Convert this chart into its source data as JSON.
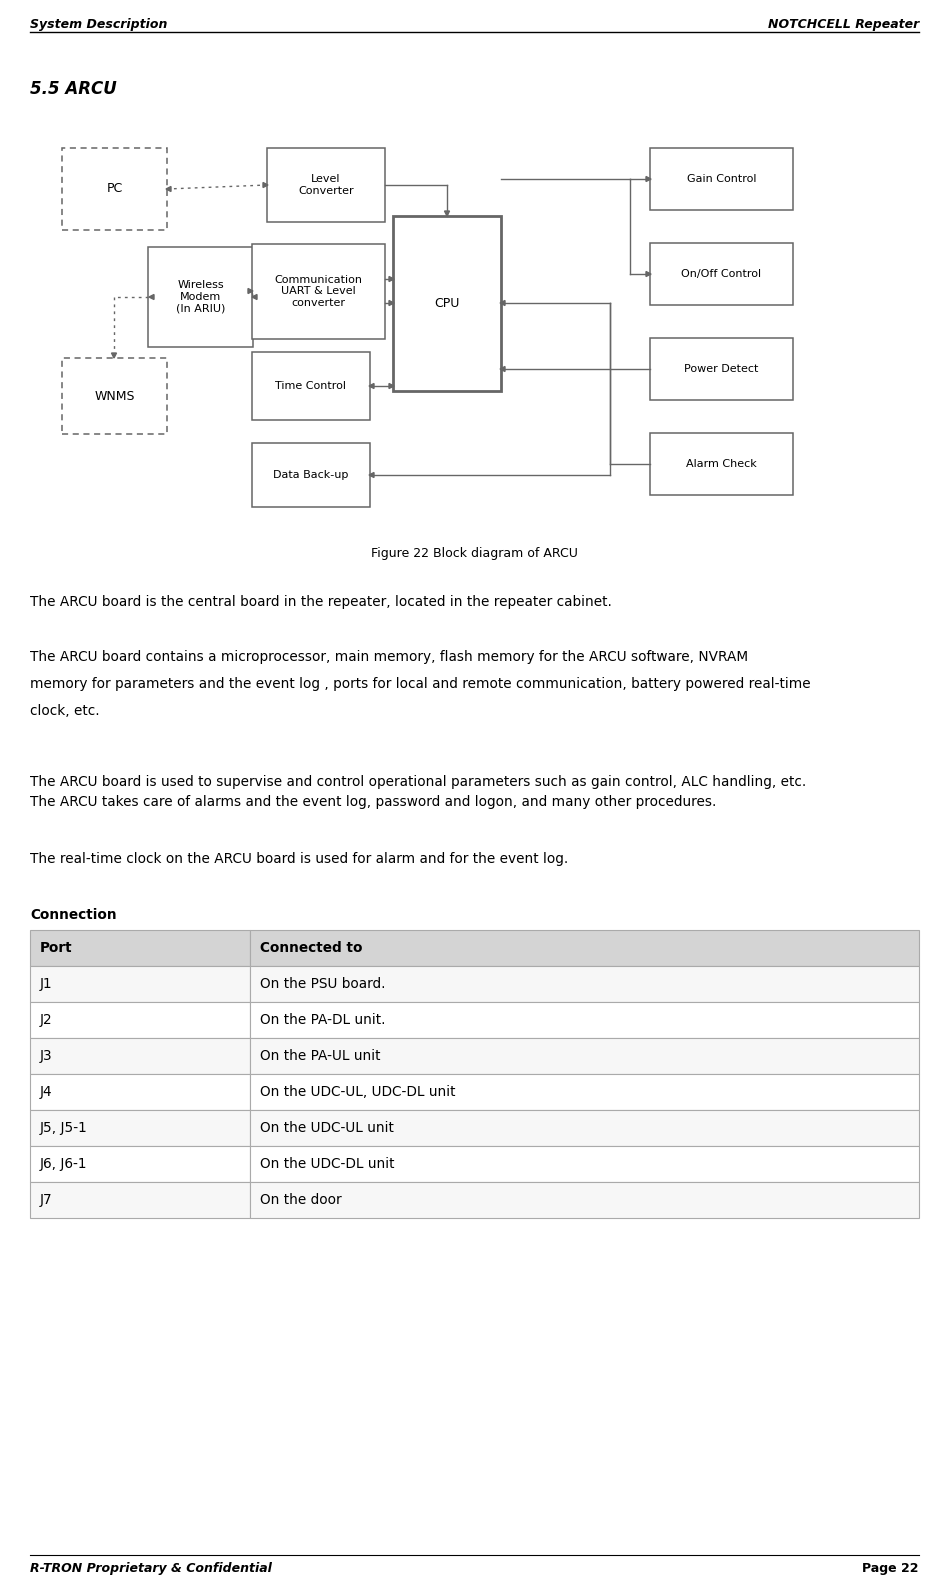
{
  "header_left": "System Description",
  "header_right": "NOTCHCELL Repeater",
  "footer_left": "R-TRON Proprietary & Confidential",
  "footer_right": "Page 22",
  "section_title": "5.5 ARCU",
  "figure_caption": "Figure 22 Block diagram of ARCU",
  "para1": "The ARCU board is the central board in the repeater, located in the repeater cabinet.",
  "para2_lines": [
    "The ARCU board contains a microprocessor, main memory, flash memory for the ARCU software, NVRAM",
    "memory for parameters and the event log , ports for local and remote communication, battery powered real-time",
    "clock, etc."
  ],
  "para3_lines": [
    "The ARCU board is used to supervise and control operational parameters such as gain control, ALC handling, etc.",
    "The ARCU takes care of alarms and the event log, password and logon, and many other procedures."
  ],
  "para4": "The real-time clock on the ARCU board is used for alarm and for the event log.",
  "connection_title": "Connection",
  "table_headers": [
    "Port",
    "Connected to"
  ],
  "table_rows": [
    [
      "J1",
      "On the PSU board."
    ],
    [
      "J2",
      "On the PA-DL unit."
    ],
    [
      "J3",
      "On the PA-UL unit"
    ],
    [
      "J4",
      "On the UDC-UL, UDC-DL unit"
    ],
    [
      "J5, J5-1",
      "On the UDC-UL unit"
    ],
    [
      "J6, J6-1",
      "On the UDC-DL unit"
    ],
    [
      "J7",
      "On the door"
    ]
  ],
  "bg_color": "#ffffff",
  "text_color": "#000000",
  "diagram_edge_color": "#666666",
  "table_header_bg": "#d4d4d4",
  "table_row_bg": [
    "#f7f7f7",
    "#ffffff"
  ]
}
